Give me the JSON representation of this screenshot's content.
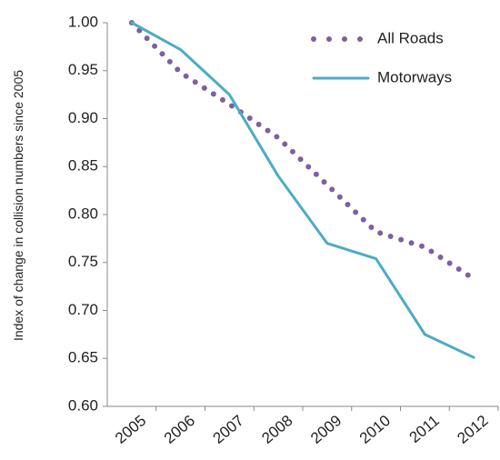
{
  "chart_data": {
    "type": "line",
    "y_label": "Index of change in collision numbers since 2005",
    "categories": [
      "2005",
      "2006",
      "2007",
      "2008",
      "2009",
      "2010",
      "2011",
      "2012"
    ],
    "series": [
      {
        "name": "All Roads",
        "color": "#7e5fa0",
        "style": "dotted",
        "values": [
          1.0,
          0.948,
          0.915,
          0.88,
          0.831,
          0.782,
          0.766,
          0.733
        ]
      },
      {
        "name": "Motorways",
        "color": "#4bacc6",
        "style": "solid",
        "values": [
          1.0,
          0.972,
          0.925,
          0.84,
          0.77,
          0.754,
          0.675,
          0.651
        ]
      }
    ],
    "ylim": [
      0.6,
      1.0
    ],
    "yticks": [
      {
        "value": 0.6,
        "label": "0.60"
      },
      {
        "value": 0.65,
        "label": "0.65"
      },
      {
        "value": 0.7,
        "label": "0.70"
      },
      {
        "value": 0.75,
        "label": "0.75"
      },
      {
        "value": 0.8,
        "label": "0.80"
      },
      {
        "value": 0.85,
        "label": "0.85"
      },
      {
        "value": 0.9,
        "label": "0.90"
      },
      {
        "value": 0.95,
        "label": "0.95"
      },
      {
        "value": 1.0,
        "label": "1.00"
      }
    ],
    "grid": false,
    "legend": "upper right"
  }
}
